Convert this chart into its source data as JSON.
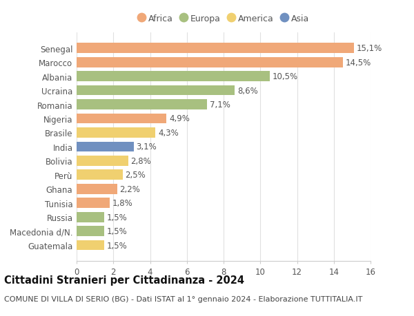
{
  "categories": [
    "Senegal",
    "Marocco",
    "Albania",
    "Ucraina",
    "Romania",
    "Nigeria",
    "Brasile",
    "India",
    "Bolivia",
    "Perù",
    "Ghana",
    "Tunisia",
    "Russia",
    "Macedonia d/N.",
    "Guatemala"
  ],
  "values": [
    15.1,
    14.5,
    10.5,
    8.6,
    7.1,
    4.9,
    4.3,
    3.1,
    2.8,
    2.5,
    2.2,
    1.8,
    1.5,
    1.5,
    1.5
  ],
  "labels": [
    "15,1%",
    "14,5%",
    "10,5%",
    "8,6%",
    "7,1%",
    "4,9%",
    "4,3%",
    "3,1%",
    "2,8%",
    "2,5%",
    "2,2%",
    "1,8%",
    "1,5%",
    "1,5%",
    "1,5%"
  ],
  "continents": [
    "Africa",
    "Africa",
    "Europa",
    "Europa",
    "Europa",
    "Africa",
    "America",
    "Asia",
    "America",
    "America",
    "Africa",
    "Africa",
    "Europa",
    "Europa",
    "America"
  ],
  "continent_colors": {
    "Africa": "#F0A878",
    "Europa": "#A8C080",
    "America": "#F0D070",
    "Asia": "#7090C0"
  },
  "legend_order": [
    "Africa",
    "Europa",
    "America",
    "Asia"
  ],
  "xlim": [
    0,
    16
  ],
  "xticks": [
    0,
    2,
    4,
    6,
    8,
    10,
    12,
    14,
    16
  ],
  "title": "Cittadini Stranieri per Cittadinanza - 2024",
  "subtitle": "COMUNE DI VILLA DI SERIO (BG) - Dati ISTAT al 1° gennaio 2024 - Elaborazione TUTTITALIA.IT",
  "background_color": "#ffffff",
  "grid_color": "#e0e0e0",
  "bar_height": 0.72,
  "label_fontsize": 8.5,
  "tick_fontsize": 8.5,
  "title_fontsize": 10.5,
  "subtitle_fontsize": 8.0
}
